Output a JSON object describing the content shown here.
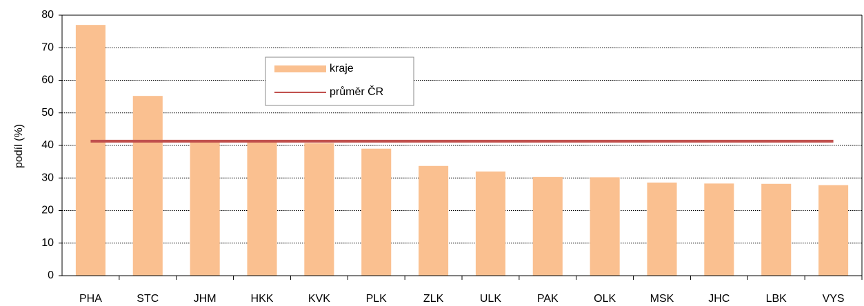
{
  "chart_data": {
    "type": "bar",
    "y_label": "podíl (%)",
    "categories": [
      "PHA",
      "STC",
      "JHM",
      "HKK",
      "KVK",
      "PLK",
      "ZLK",
      "ULK",
      "PAK",
      "OLK",
      "MSK",
      "JHC",
      "LBK",
      "VYS"
    ],
    "series": [
      {
        "name": "kraje",
        "type": "bar",
        "color": "#fac090",
        "values": [
          77,
          55.2,
          41.5,
          41.3,
          40.7,
          39,
          33.7,
          32,
          30.3,
          30.2,
          28.6,
          28.3,
          28.2,
          27.8
        ]
      },
      {
        "name": "průměr ČR",
        "type": "line",
        "color": "#c0504d",
        "values": [
          41.3,
          41.3,
          41.3,
          41.3,
          41.3,
          41.3,
          41.3,
          41.3,
          41.3,
          41.3,
          41.3,
          41.3,
          41.3,
          41.3
        ]
      }
    ],
    "ylim": [
      0,
      80
    ],
    "yticks": [
      0,
      10,
      20,
      30,
      40,
      50,
      60,
      70,
      80
    ],
    "grid": true
  }
}
